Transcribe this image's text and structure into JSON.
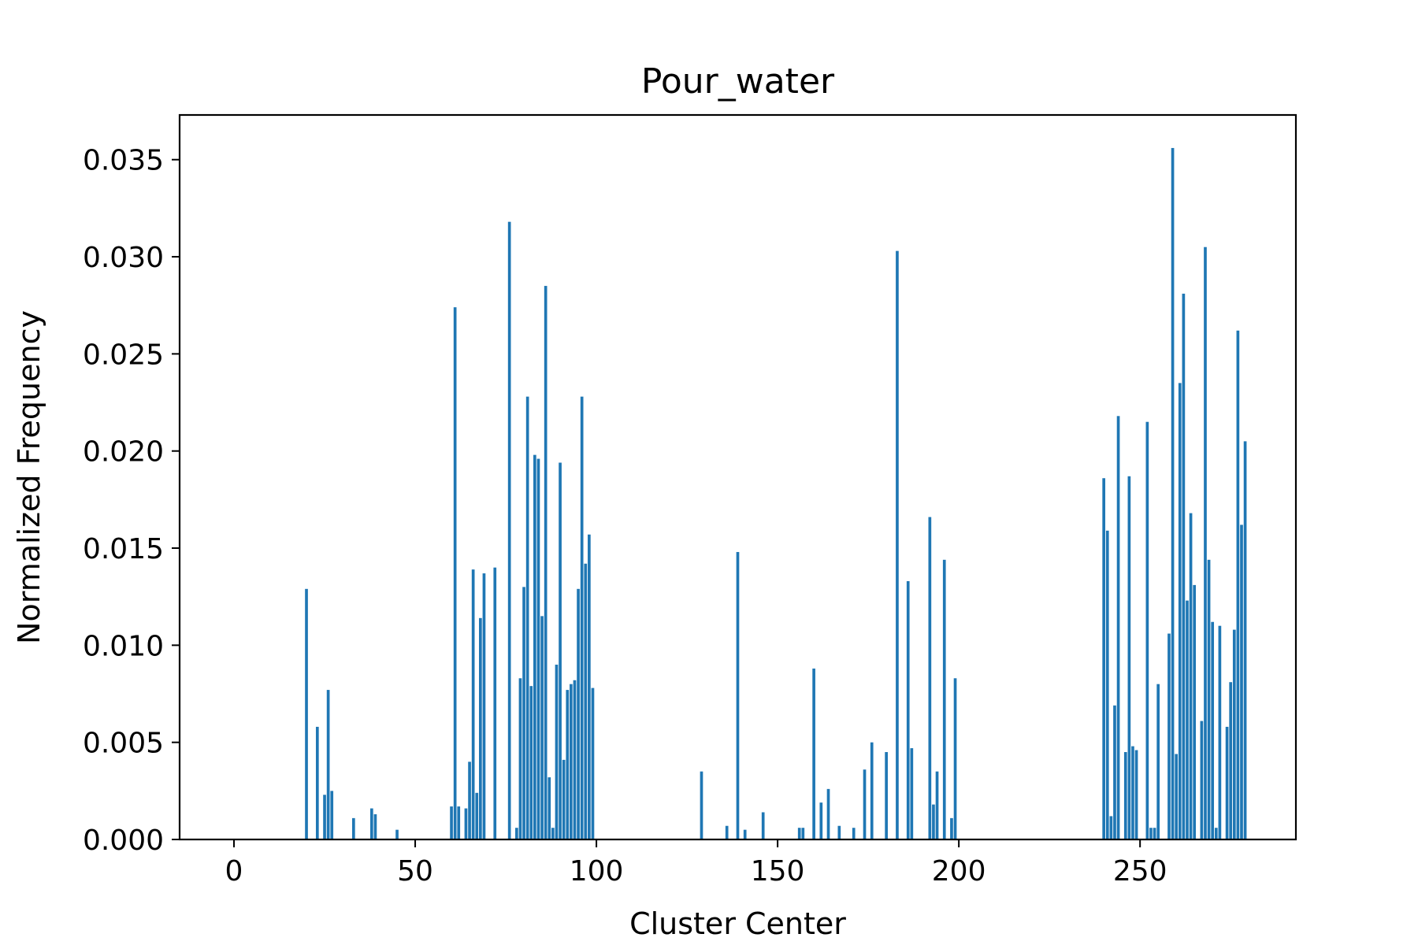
{
  "chart_data": {
    "type": "bar",
    "title": "Pour_water",
    "xlabel": "Cluster Center",
    "ylabel": "Normalized Frequency",
    "xlim": [
      -15,
      293
    ],
    "ylim": [
      0,
      0.0373
    ],
    "xticks": [
      0,
      50,
      100,
      150,
      200,
      250
    ],
    "xtick_labels": [
      "0",
      "50",
      "100",
      "150",
      "200",
      "250"
    ],
    "yticks": [
      0,
      0.005,
      0.01,
      0.015,
      0.02,
      0.025,
      0.03,
      0.035
    ],
    "ytick_labels": [
      "0.000",
      "0.005",
      "0.010",
      "0.015",
      "0.020",
      "0.025",
      "0.030",
      "0.035"
    ],
    "bar_width": 0.8,
    "bar_color": "#1f77b4",
    "grid": false,
    "legend": "none",
    "x": [
      20,
      23,
      25,
      26,
      27,
      33,
      38,
      39,
      45,
      60,
      61,
      62,
      64,
      65,
      66,
      67,
      68,
      69,
      72,
      76,
      78,
      79,
      80,
      81,
      82,
      83,
      84,
      85,
      86,
      87,
      88,
      89,
      90,
      91,
      92,
      93,
      94,
      95,
      96,
      97,
      98,
      99,
      129,
      136,
      139,
      141,
      146,
      156,
      157,
      160,
      162,
      164,
      167,
      171,
      174,
      176,
      180,
      183,
      186,
      187,
      192,
      193,
      194,
      196,
      198,
      199,
      240,
      241,
      242,
      243,
      244,
      246,
      247,
      248,
      249,
      252,
      253,
      254,
      255,
      258,
      259,
      260,
      261,
      262,
      263,
      264,
      265,
      267,
      268,
      269,
      270,
      271,
      272,
      274,
      275,
      276,
      277,
      278,
      279
    ],
    "values": [
      0.0129,
      0.0058,
      0.0023,
      0.0077,
      0.0025,
      0.0011,
      0.0016,
      0.0013,
      0.0005,
      0.0017,
      0.0274,
      0.0017,
      0.0016,
      0.004,
      0.0139,
      0.0024,
      0.0114,
      0.0137,
      0.014,
      0.0318,
      0.0006,
      0.0083,
      0.013,
      0.0228,
      0.0079,
      0.0198,
      0.0196,
      0.0115,
      0.0285,
      0.0032,
      0.0006,
      0.009,
      0.0194,
      0.0041,
      0.0077,
      0.008,
      0.0082,
      0.0129,
      0.0228,
      0.0142,
      0.0157,
      0.0078,
      0.0035,
      0.0007,
      0.0148,
      0.0005,
      0.0014,
      0.0006,
      0.0006,
      0.0088,
      0.0019,
      0.0026,
      0.0007,
      0.0006,
      0.0036,
      0.005,
      0.0045,
      0.0303,
      0.0133,
      0.0047,
      0.0166,
      0.0018,
      0.0035,
      0.0144,
      0.0011,
      0.0083,
      0.0186,
      0.0159,
      0.0012,
      0.0069,
      0.0218,
      0.0045,
      0.0187,
      0.0048,
      0.0046,
      0.0215,
      0.0006,
      0.0006,
      0.008,
      0.0106,
      0.0356,
      0.0044,
      0.0235,
      0.0281,
      0.0123,
      0.0168,
      0.0131,
      0.0061,
      0.0305,
      0.0144,
      0.0112,
      0.0006,
      0.011,
      0.0058,
      0.0081,
      0.0108,
      0.0262,
      0.0162,
      0.0205
    ]
  }
}
